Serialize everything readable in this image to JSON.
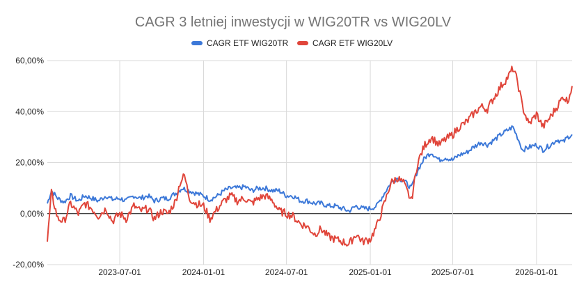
{
  "chart_data": {
    "type": "line",
    "title": "CAGR 3 letniej inwestycji w WIG20TR vs WIG20LV",
    "xlabel": "",
    "ylabel": "",
    "legend_position": "top",
    "grid": true,
    "x_range": [
      "2023-01-23",
      "2026-03-20"
    ],
    "x_ticks": [
      "2023-07-01",
      "2024-01-01",
      "2024-07-01",
      "2025-01-01",
      "2025-07-01",
      "2026-01-01"
    ],
    "y_ticks": [
      "-20,00%",
      "0,00%",
      "20,00%",
      "40,00%",
      "60,00%"
    ],
    "ylim": [
      -20,
      60
    ],
    "y_unit": "%",
    "series": [
      {
        "name": "CAGR ETF WIG20TR",
        "color": "#3c78d8",
        "points": [
          [
            "2023-01-23",
            4
          ],
          [
            "2023-02-01",
            9
          ],
          [
            "2023-02-15",
            6
          ],
          [
            "2023-03-01",
            4.5
          ],
          [
            "2023-03-15",
            7
          ],
          [
            "2023-04-01",
            5
          ],
          [
            "2023-04-15",
            7
          ],
          [
            "2023-05-01",
            6
          ],
          [
            "2023-05-15",
            5
          ],
          [
            "2023-06-01",
            7
          ],
          [
            "2023-06-15",
            5.5
          ],
          [
            "2023-07-01",
            6
          ],
          [
            "2023-07-15",
            5
          ],
          [
            "2023-08-01",
            7
          ],
          [
            "2023-08-15",
            6
          ],
          [
            "2023-09-01",
            7
          ],
          [
            "2023-09-15",
            5
          ],
          [
            "2023-10-01",
            6
          ],
          [
            "2023-10-15",
            6
          ],
          [
            "2023-11-01",
            8
          ],
          [
            "2023-11-15",
            10
          ],
          [
            "2023-12-01",
            9
          ],
          [
            "2023-12-15",
            8
          ],
          [
            "2024-01-01",
            7
          ],
          [
            "2024-01-15",
            5.5
          ],
          [
            "2024-02-01",
            7
          ],
          [
            "2024-02-15",
            9
          ],
          [
            "2024-03-01",
            10
          ],
          [
            "2024-03-15",
            10
          ],
          [
            "2024-04-01",
            10.5
          ],
          [
            "2024-04-15",
            9
          ],
          [
            "2024-05-01",
            10
          ],
          [
            "2024-05-15",
            10
          ],
          [
            "2024-06-01",
            9
          ],
          [
            "2024-06-15",
            9
          ],
          [
            "2024-07-01",
            7
          ],
          [
            "2024-07-15",
            7
          ],
          [
            "2024-08-01",
            5
          ],
          [
            "2024-08-15",
            5
          ],
          [
            "2024-09-01",
            4
          ],
          [
            "2024-09-15",
            4
          ],
          [
            "2024-10-01",
            3
          ],
          [
            "2024-10-15",
            3
          ],
          [
            "2024-11-01",
            2
          ],
          [
            "2024-11-15",
            1
          ],
          [
            "2024-12-01",
            3
          ],
          [
            "2024-12-15",
            2
          ],
          [
            "2025-01-01",
            2
          ],
          [
            "2025-01-15",
            3
          ],
          [
            "2025-02-01",
            8
          ],
          [
            "2025-02-15",
            12
          ],
          [
            "2025-03-01",
            14
          ],
          [
            "2025-03-15",
            13
          ],
          [
            "2025-04-01",
            10
          ],
          [
            "2025-04-15",
            17
          ],
          [
            "2025-05-01",
            22
          ],
          [
            "2025-05-15",
            24
          ],
          [
            "2025-06-01",
            21
          ],
          [
            "2025-06-15",
            22
          ],
          [
            "2025-07-01",
            21
          ],
          [
            "2025-07-15",
            23
          ],
          [
            "2025-08-01",
            24
          ],
          [
            "2025-08-15",
            26
          ],
          [
            "2025-09-01",
            28
          ],
          [
            "2025-09-15",
            27
          ],
          [
            "2025-10-01",
            29
          ],
          [
            "2025-10-15",
            31
          ],
          [
            "2025-11-01",
            33
          ],
          [
            "2025-11-10",
            34
          ],
          [
            "2025-11-20",
            30
          ],
          [
            "2025-12-01",
            25
          ],
          [
            "2025-12-15",
            26
          ],
          [
            "2026-01-01",
            27
          ],
          [
            "2026-01-15",
            25
          ],
          [
            "2026-02-01",
            27
          ],
          [
            "2026-02-15",
            29
          ],
          [
            "2026-03-01",
            28
          ],
          [
            "2026-03-10",
            30
          ],
          [
            "2026-03-20",
            31
          ]
        ]
      },
      {
        "name": "CAGR ETF WIG20LV",
        "color": "#e0453a",
        "points": [
          [
            "2023-01-23",
            -11
          ],
          [
            "2023-02-01",
            8
          ],
          [
            "2023-02-15",
            -2
          ],
          [
            "2023-03-01",
            -3
          ],
          [
            "2023-03-15",
            4
          ],
          [
            "2023-04-01",
            0
          ],
          [
            "2023-04-15",
            4
          ],
          [
            "2023-05-01",
            2
          ],
          [
            "2023-05-15",
            -1
          ],
          [
            "2023-06-01",
            2
          ],
          [
            "2023-06-15",
            -3
          ],
          [
            "2023-07-01",
            0
          ],
          [
            "2023-07-15",
            -2
          ],
          [
            "2023-08-01",
            3
          ],
          [
            "2023-08-15",
            1
          ],
          [
            "2023-09-01",
            2
          ],
          [
            "2023-09-15",
            -2
          ],
          [
            "2023-10-01",
            1
          ],
          [
            "2023-10-15",
            0
          ],
          [
            "2023-11-01",
            5
          ],
          [
            "2023-11-10",
            12
          ],
          [
            "2023-11-20",
            15
          ],
          [
            "2023-12-01",
            6
          ],
          [
            "2023-12-15",
            4
          ],
          [
            "2024-01-01",
            3
          ],
          [
            "2024-01-15",
            -2
          ],
          [
            "2024-02-01",
            2
          ],
          [
            "2024-02-15",
            5
          ],
          [
            "2024-03-01",
            7
          ],
          [
            "2024-03-15",
            5
          ],
          [
            "2024-04-01",
            6
          ],
          [
            "2024-04-15",
            4
          ],
          [
            "2024-05-01",
            6
          ],
          [
            "2024-05-15",
            7
          ],
          [
            "2024-06-01",
            5
          ],
          [
            "2024-06-15",
            1
          ],
          [
            "2024-07-01",
            0
          ],
          [
            "2024-07-15",
            -1
          ],
          [
            "2024-08-01",
            -4
          ],
          [
            "2024-08-15",
            -5
          ],
          [
            "2024-09-01",
            -8
          ],
          [
            "2024-09-15",
            -6
          ],
          [
            "2024-10-01",
            -9
          ],
          [
            "2024-10-15",
            -10
          ],
          [
            "2024-11-01",
            -11
          ],
          [
            "2024-11-15",
            -12
          ],
          [
            "2024-12-01",
            -8
          ],
          [
            "2024-12-15",
            -11
          ],
          [
            "2025-01-01",
            -10
          ],
          [
            "2025-01-15",
            -5
          ],
          [
            "2025-02-01",
            4
          ],
          [
            "2025-02-15",
            12
          ],
          [
            "2025-03-01",
            14
          ],
          [
            "2025-03-15",
            12
          ],
          [
            "2025-04-01",
            5
          ],
          [
            "2025-04-15",
            20
          ],
          [
            "2025-05-01",
            27
          ],
          [
            "2025-05-15",
            30
          ],
          [
            "2025-06-01",
            27
          ],
          [
            "2025-06-15",
            29
          ],
          [
            "2025-07-01",
            31
          ],
          [
            "2025-07-15",
            34
          ],
          [
            "2025-08-01",
            36
          ],
          [
            "2025-08-15",
            39
          ],
          [
            "2025-09-01",
            42
          ],
          [
            "2025-09-15",
            41
          ],
          [
            "2025-10-01",
            46
          ],
          [
            "2025-10-15",
            50
          ],
          [
            "2025-11-01",
            54
          ],
          [
            "2025-11-10",
            57
          ],
          [
            "2025-11-20",
            52
          ],
          [
            "2025-12-01",
            42
          ],
          [
            "2025-12-15",
            35
          ],
          [
            "2026-01-01",
            39
          ],
          [
            "2026-01-15",
            34
          ],
          [
            "2026-02-01",
            38
          ],
          [
            "2026-02-15",
            42
          ],
          [
            "2026-03-01",
            46
          ],
          [
            "2026-03-10",
            44
          ],
          [
            "2026-03-20",
            50
          ]
        ]
      }
    ]
  }
}
